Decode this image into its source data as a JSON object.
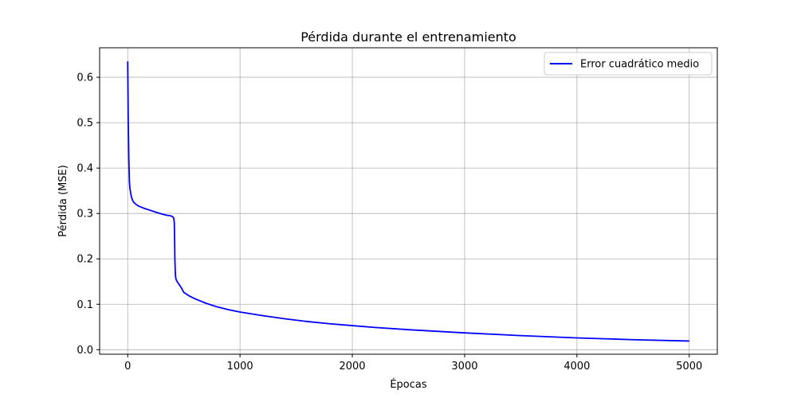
{
  "chart_data": {
    "type": "line",
    "title": "Pérdida durante el entrenamiento",
    "xlabel": "Épocas",
    "ylabel": "Pérdida (MSE)",
    "xlim": [
      -250,
      5250
    ],
    "ylim": [
      -0.01,
      0.665
    ],
    "xticks": [
      0,
      1000,
      2000,
      3000,
      4000,
      5000
    ],
    "yticks": [
      0.0,
      0.1,
      0.2,
      0.3,
      0.4,
      0.5,
      0.6
    ],
    "xtick_labels": [
      "0",
      "1000",
      "2000",
      "3000",
      "4000",
      "5000"
    ],
    "ytick_labels": [
      "0.0",
      "0.1",
      "0.2",
      "0.3",
      "0.4",
      "0.5",
      "0.6"
    ],
    "grid": true,
    "legend_position": "upper right",
    "series": [
      {
        "name": "Error cuadrático medio",
        "color": "#0000ff",
        "x": [
          0,
          5,
          10,
          15,
          20,
          30,
          40,
          50,
          60,
          80,
          100,
          150,
          200,
          250,
          300,
          350,
          380,
          400,
          410,
          415,
          418,
          420,
          423,
          426,
          430,
          440,
          460,
          480,
          500,
          550,
          600,
          700,
          800,
          900,
          1000,
          1200,
          1400,
          1600,
          1800,
          2000,
          2200,
          2500,
          3000,
          3500,
          4000,
          4500,
          5000
        ],
        "y": [
          0.635,
          0.5,
          0.42,
          0.37,
          0.355,
          0.34,
          0.331,
          0.326,
          0.323,
          0.319,
          0.316,
          0.311,
          0.307,
          0.303,
          0.299,
          0.296,
          0.295,
          0.293,
          0.29,
          0.28,
          0.24,
          0.2,
          0.175,
          0.162,
          0.155,
          0.15,
          0.143,
          0.135,
          0.126,
          0.118,
          0.112,
          0.102,
          0.094,
          0.088,
          0.083,
          0.075,
          0.068,
          0.062,
          0.057,
          0.053,
          0.049,
          0.044,
          0.037,
          0.031,
          0.026,
          0.022,
          0.019
        ]
      }
    ]
  }
}
